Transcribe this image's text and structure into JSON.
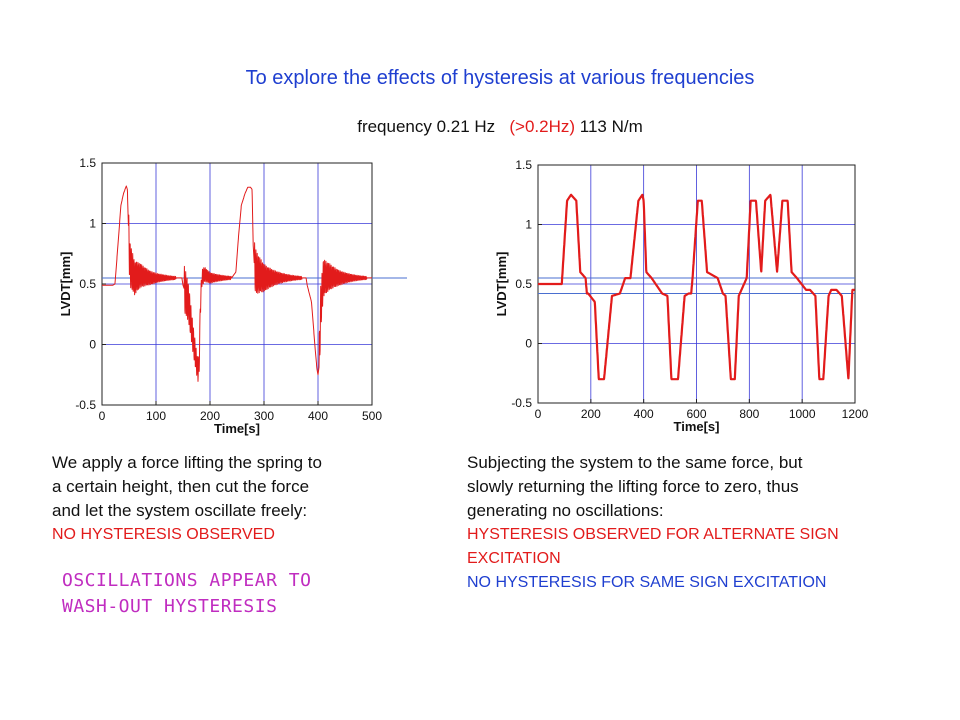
{
  "header": {
    "title": "To explore the effects of hysteresis at various frequencies",
    "subtitle_prefix": "frequency 0.21 Hz",
    "subtitle_red": "(>0.2Hz)",
    "subtitle_suffix": "113 N/m"
  },
  "left_text": {
    "lines": [
      "We apply a force lifting the spring to",
      "a certain height, then cut the force",
      "and let the system oscillate freely:"
    ],
    "red_line": "NO HYSTERESIS OBSERVED",
    "magenta_lines": [
      "OSCILLATIONS APPEAR TO",
      "WASH-OUT HYSTERESIS"
    ]
  },
  "right_text": {
    "lines": [
      "Subjecting the system to the same force, but",
      "slowly returning the lifting force to zero, thus",
      "generating no oscillations:"
    ],
    "red_lines": [
      "HYSTERESIS OBSERVED FOR ALTERNATE  SIGN",
      "EXCITATION"
    ],
    "blue_line": "NO HYSTERESIS FOR SAME SIGN EXCITATION"
  },
  "colors": {
    "signal": "#e21b1b",
    "reference": "#4a6fd0",
    "grid": "#3a3ad8"
  },
  "chart_data": [
    {
      "type": "line",
      "xlabel": "Time[s]",
      "ylabel": "LVDT[mm]",
      "xlim": [
        0,
        500
      ],
      "ylim": [
        -0.5,
        1.5
      ],
      "xticks": [
        0,
        100,
        200,
        300,
        400,
        500
      ],
      "yticks": [
        -0.5,
        0,
        0.5,
        1,
        1.5
      ],
      "xtick_labels": [
        "0",
        "100",
        "200",
        "300",
        "400",
        "500"
      ],
      "ytick_labels": [
        "-0.5",
        "0",
        "0.5",
        "1",
        "1.5"
      ],
      "grid": true,
      "reference_lines": [
        0.55
      ],
      "series": [
        {
          "x": [
            0,
            20,
            24,
            30,
            35,
            40,
            45,
            47,
            50,
            52,
            55,
            60,
            70,
            90,
            120,
            148,
            150,
            160,
            170,
            175,
            178,
            180,
            182,
            185,
            190,
            200,
            220,
            240,
            248,
            252,
            258,
            265,
            270,
            275,
            278,
            280,
            282,
            285,
            290,
            300,
            320,
            350,
            370,
            378,
            380,
            388,
            395,
            398,
            400,
            402,
            405,
            410,
            420,
            440,
            470,
            500
          ],
          "y": [
            0.49,
            0.49,
            0.5,
            0.85,
            1.15,
            1.25,
            1.31,
            1.28,
            0.82,
            0.66,
            0.62,
            0.55,
            0.57,
            0.55,
            0.55,
            0.55,
            0.49,
            0.35,
            0.0,
            -0.15,
            -0.22,
            -0.15,
            0.3,
            0.55,
            0.58,
            0.55,
            0.55,
            0.55,
            0.6,
            0.85,
            1.15,
            1.25,
            1.3,
            1.3,
            1.28,
            0.82,
            0.66,
            0.6,
            0.58,
            0.55,
            0.55,
            0.55,
            0.55,
            0.55,
            0.49,
            0.35,
            -0.05,
            -0.2,
            -0.25,
            -0.18,
            0.3,
            0.55,
            0.56,
            0.55,
            0.55,
            0.55
          ]
        }
      ]
    },
    {
      "type": "line",
      "xlabel": "Time[s]",
      "ylabel": "LVDT[mm]",
      "xlim": [
        0,
        1200
      ],
      "ylim": [
        -0.5,
        1.5
      ],
      "xticks": [
        0,
        200,
        400,
        600,
        800,
        1000,
        1200
      ],
      "yticks": [
        -0.5,
        0,
        0.5,
        1,
        1.5
      ],
      "xtick_labels": [
        "0",
        "200",
        "400",
        "600",
        "800",
        "1000",
        "1200"
      ],
      "ytick_labels": [
        "-0.5",
        "0",
        "0.5",
        "1",
        "1.5"
      ],
      "grid": true,
      "reference_lines": [
        0.55,
        0.42
      ],
      "series": [
        {
          "x": [
            0,
            90,
            110,
            125,
            145,
            160,
            180,
            185,
            190,
            215,
            230,
            250,
            280,
            310,
            330,
            350,
            380,
            395,
            400,
            410,
            430,
            470,
            490,
            505,
            530,
            555,
            570,
            580,
            585,
            605,
            620,
            640,
            680,
            700,
            710,
            730,
            745,
            760,
            790,
            805,
            825,
            845,
            860,
            880,
            905,
            925,
            945,
            960,
            980,
            1015,
            1030,
            1050,
            1065,
            1080,
            1100,
            1110,
            1130,
            1150,
            1175,
            1190,
            1200
          ],
          "y": [
            0.5,
            0.5,
            1.2,
            1.25,
            1.2,
            0.6,
            0.55,
            0.42,
            0.42,
            0.35,
            -0.3,
            -0.3,
            0.4,
            0.42,
            0.55,
            0.55,
            1.2,
            1.25,
            1.2,
            0.6,
            0.55,
            0.42,
            0.4,
            -0.3,
            -0.3,
            0.4,
            0.42,
            0.42,
            0.55,
            1.2,
            1.2,
            0.6,
            0.55,
            0.42,
            0.4,
            -0.3,
            -0.3,
            0.4,
            0.55,
            1.2,
            1.2,
            0.6,
            1.2,
            1.25,
            0.6,
            1.2,
            1.2,
            0.6,
            0.55,
            0.45,
            0.45,
            0.4,
            -0.3,
            -0.3,
            0.4,
            0.45,
            0.45,
            0.4,
            -0.3,
            0.45,
            0.45
          ]
        }
      ]
    }
  ]
}
